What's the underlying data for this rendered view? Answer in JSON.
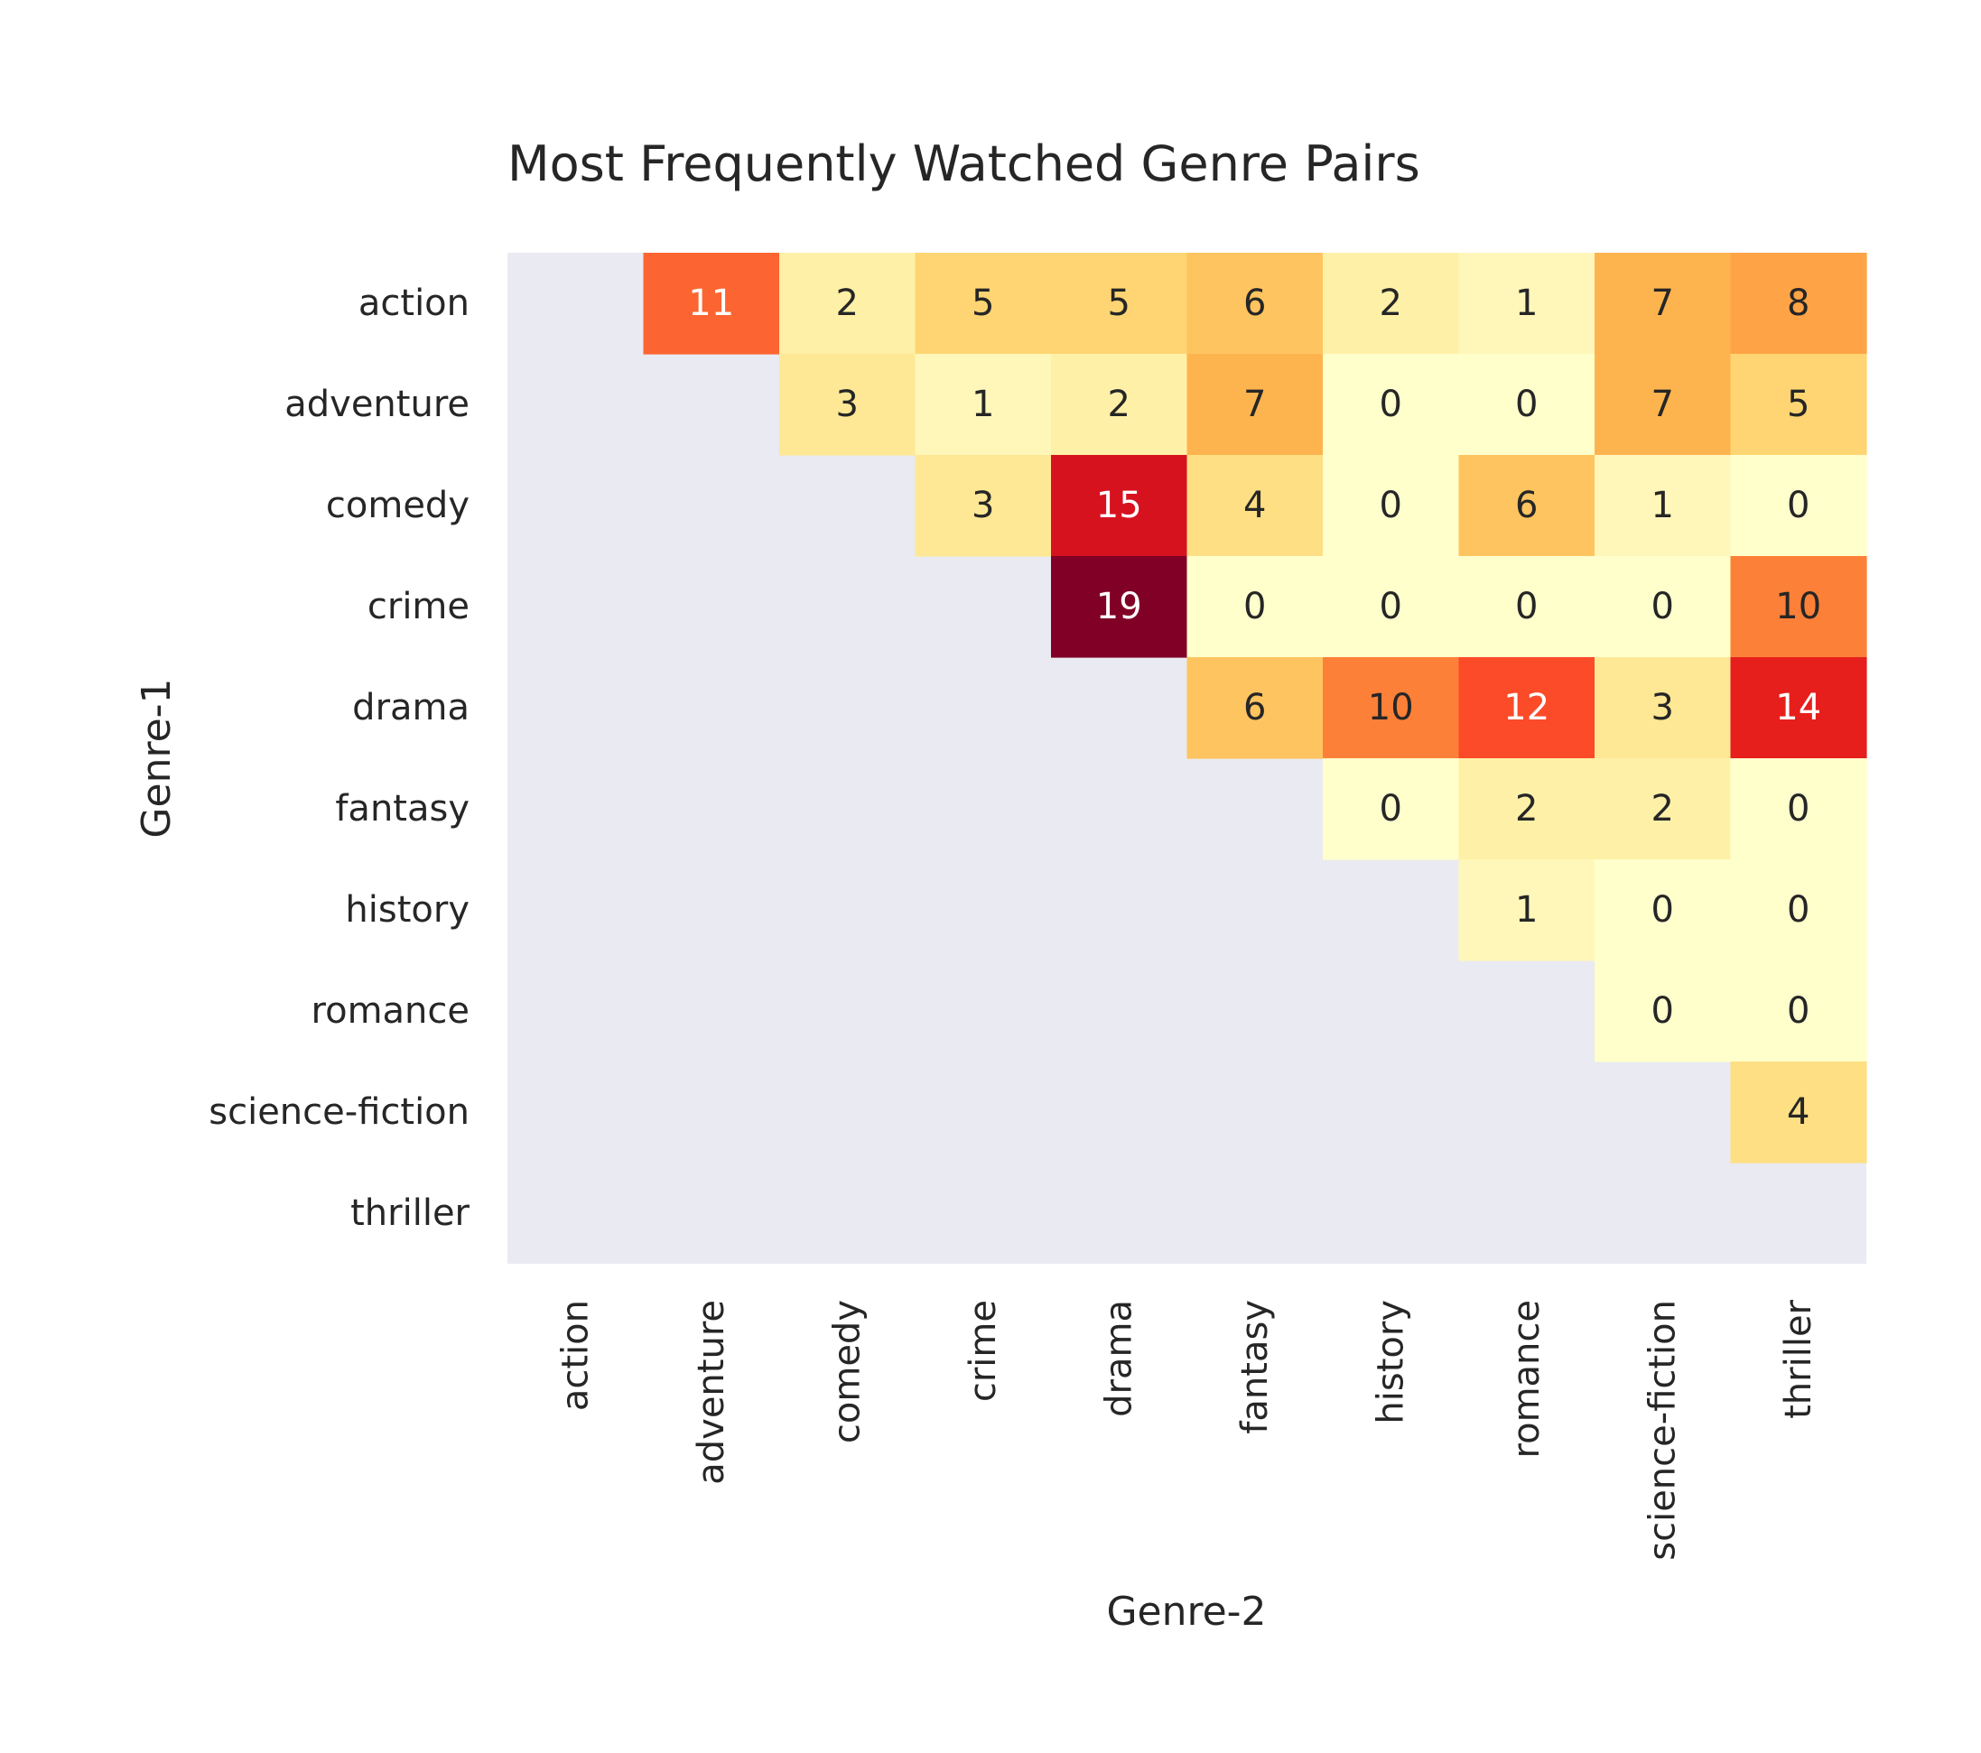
{
  "chart_data": {
    "type": "heatmap",
    "title": "Most Frequently Watched Genre Pairs",
    "xlabel": "Genre-2",
    "ylabel": "Genre-1",
    "x_categories": [
      "action",
      "adventure",
      "comedy",
      "crime",
      "drama",
      "fantasy",
      "history",
      "romance",
      "science-fiction",
      "thriller"
    ],
    "y_categories": [
      "action",
      "adventure",
      "comedy",
      "crime",
      "drama",
      "fantasy",
      "history",
      "romance",
      "science-fiction",
      "thriller"
    ],
    "values": [
      [
        null,
        11,
        2,
        5,
        5,
        6,
        2,
        1,
        7,
        8
      ],
      [
        null,
        null,
        3,
        1,
        2,
        7,
        0,
        0,
        7,
        5
      ],
      [
        null,
        null,
        null,
        3,
        15,
        4,
        0,
        6,
        1,
        0
      ],
      [
        null,
        null,
        null,
        null,
        19,
        0,
        0,
        0,
        0,
        10
      ],
      [
        null,
        null,
        null,
        null,
        null,
        6,
        10,
        12,
        3,
        14
      ],
      [
        null,
        null,
        null,
        null,
        null,
        null,
        0,
        2,
        2,
        0
      ],
      [
        null,
        null,
        null,
        null,
        null,
        null,
        null,
        1,
        0,
        0
      ],
      [
        null,
        null,
        null,
        null,
        null,
        null,
        null,
        null,
        0,
        0
      ],
      [
        null,
        null,
        null,
        null,
        null,
        null,
        null,
        null,
        null,
        4
      ],
      [
        null,
        null,
        null,
        null,
        null,
        null,
        null,
        null,
        null,
        null
      ]
    ],
    "color_range": [
      0,
      19
    ],
    "colormap": "YlOrRd",
    "masked_color": "#eaeaf2",
    "annotations": true,
    "colorbar": false
  }
}
